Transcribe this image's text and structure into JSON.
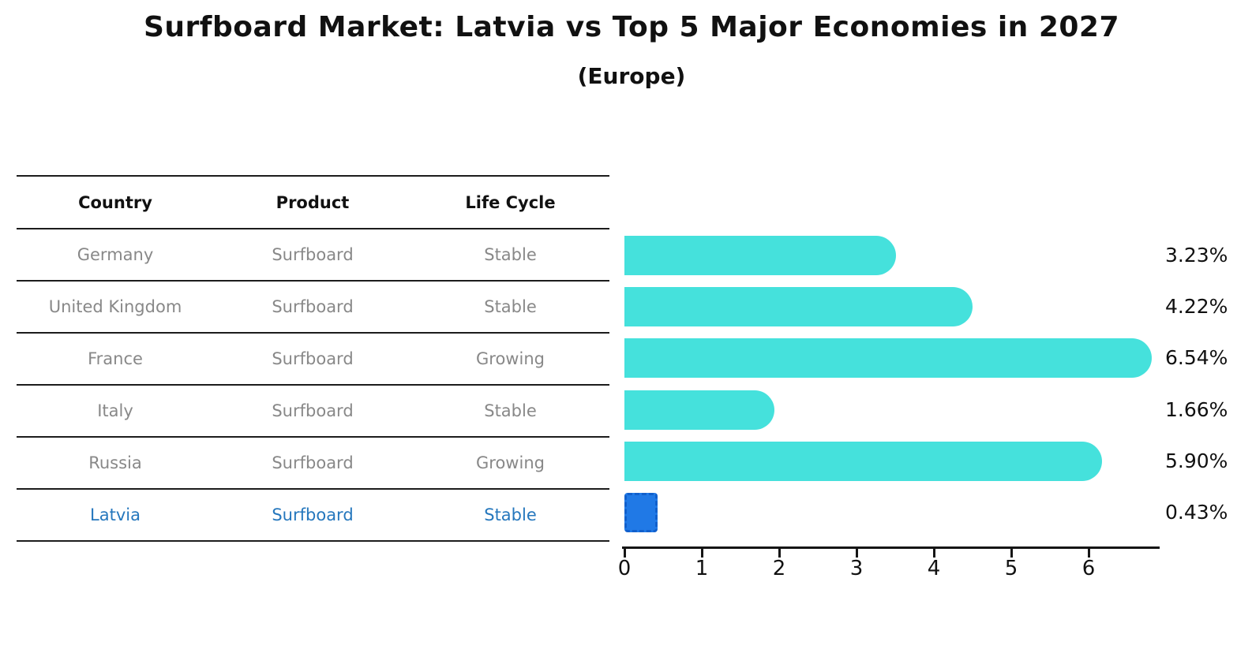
{
  "header": {
    "title": "Surfboard Market: Latvia vs Top 5 Major Economies in 2027",
    "subtitle": "(Europe)"
  },
  "table": {
    "headers": [
      "Country",
      "Product",
      "Life Cycle"
    ],
    "rows": [
      {
        "country": "Germany",
        "product": "Surfboard",
        "life_cycle": "Stable"
      },
      {
        "country": "United Kingdom",
        "product": "Surfboard",
        "life_cycle": "Stable"
      },
      {
        "country": "France",
        "product": "Surfboard",
        "life_cycle": "Growing"
      },
      {
        "country": "Italy",
        "product": "Surfboard",
        "life_cycle": "Stable"
      },
      {
        "country": "Russia",
        "product": "Surfboard",
        "life_cycle": "Growing"
      },
      {
        "country": "Latvia",
        "product": "Surfboard",
        "life_cycle": "Stable"
      }
    ],
    "highlighted_row": "Latvia"
  },
  "chart_data": {
    "type": "bar",
    "orientation": "horizontal",
    "title": "Surfboard Market: Latvia vs Top 5 Major Economies in 2027",
    "subtitle": "(Europe)",
    "categories": [
      "Germany",
      "United Kingdom",
      "France",
      "Italy",
      "Russia",
      "Latvia"
    ],
    "values": [
      3.23,
      4.22,
      6.54,
      1.66,
      5.9,
      0.43
    ],
    "value_labels": [
      "3.23%",
      "4.22%",
      "6.54%",
      "1.66%",
      "5.90%",
      "0.43%"
    ],
    "x_ticks": [
      "0",
      "1",
      "2",
      "3",
      "4",
      "5",
      "6"
    ],
    "xlim": [
      0,
      6.9
    ],
    "grid": false,
    "legend": null,
    "highlight_index": 5,
    "colors": {
      "bar": "#45E1DC",
      "highlight_bar": "#2079E6",
      "highlight_border": "#1160CC",
      "highlight_text": "#2577BD",
      "row_text": "#888888",
      "header_text": "#111111",
      "axis_text": "#111111"
    }
  }
}
